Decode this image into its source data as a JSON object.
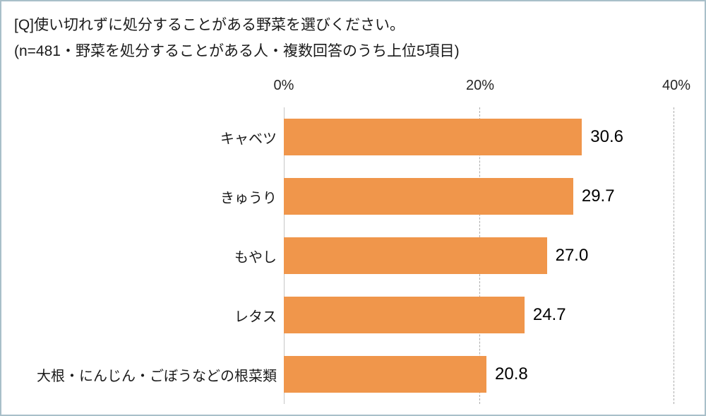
{
  "header": {
    "title_line1": "[Q]使い切れずに処分することがある野菜を選びください。",
    "title_line2": "(n=481・野菜を処分することがある人・複数回答のうち上位5項目)"
  },
  "chart_data": {
    "type": "bar",
    "orientation": "horizontal",
    "title": "[Q]使い切れずに処分することがある野菜を選びください。",
    "subtitle": "(n=481・野菜を処分することがある人・複数回答のうち上位5項目)",
    "categories": [
      "キャベツ",
      "きゅうり",
      "もやし",
      "レタス",
      "大根・にんじん・ごぼうなどの根菜類"
    ],
    "values": [
      30.6,
      29.7,
      27.0,
      24.7,
      20.8
    ],
    "value_labels": [
      "30.6",
      "29.7",
      "27.0",
      "24.7",
      "20.8"
    ],
    "xlim": [
      0,
      40
    ],
    "x_ticks": [
      "0%",
      "20%",
      "40%"
    ],
    "bar_color": "#f0964b",
    "grid": "dashed vertical gridlines at 20% and 40%",
    "legend": "none"
  }
}
